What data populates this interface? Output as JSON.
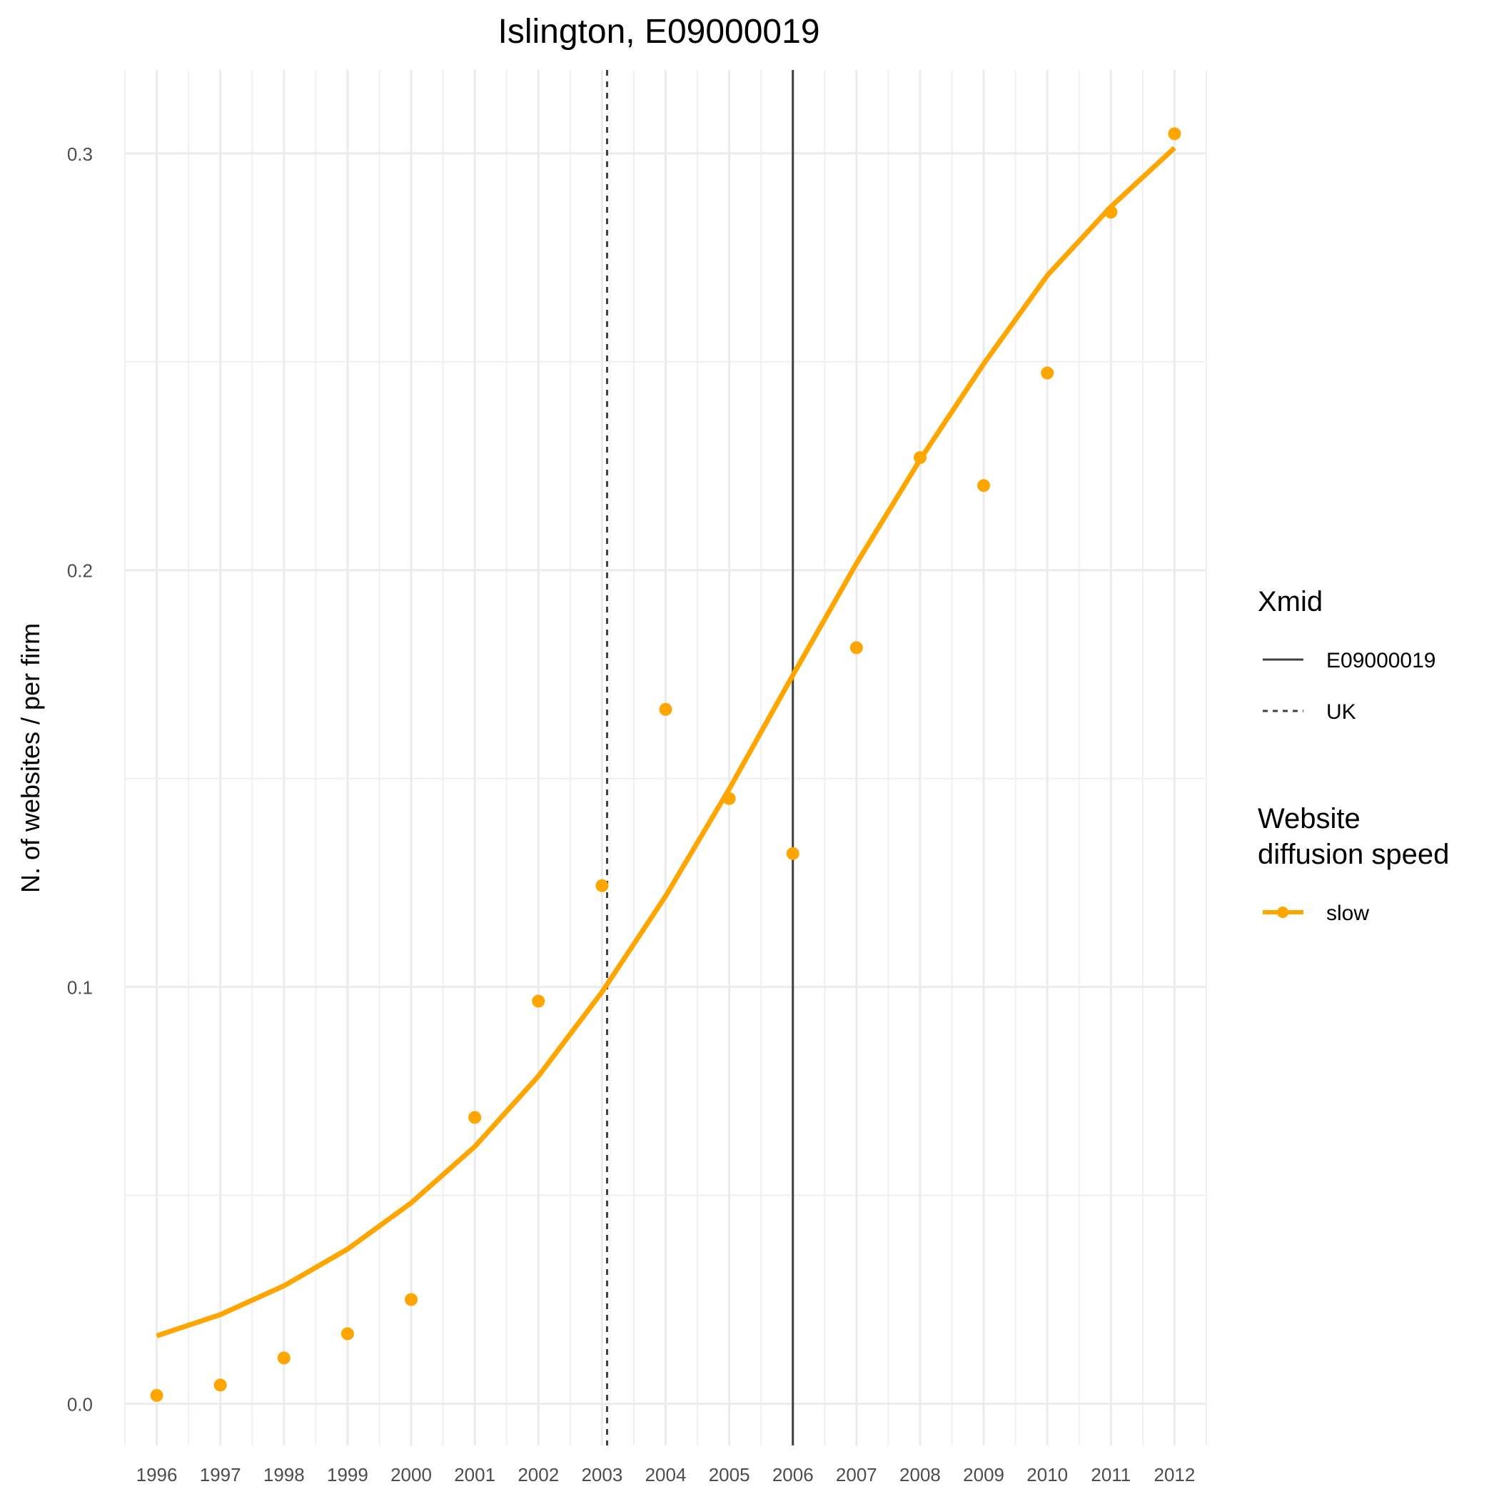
{
  "chart_data": {
    "type": "line",
    "title": "Islington, E09000019",
    "xlabel": "",
    "ylabel": "N. of websites / per firm",
    "x": [
      1996,
      1997,
      1998,
      1999,
      2000,
      2001,
      2002,
      2003,
      2004,
      2005,
      2006,
      2007,
      2008,
      2009,
      2010,
      2011,
      2012
    ],
    "xlim": [
      1995.5,
      2012.5
    ],
    "ylim": [
      -0.01,
      0.32
    ],
    "y_ticks": [
      0.0,
      0.1,
      0.2,
      0.3
    ],
    "y_tick_labels": [
      "0.0",
      "0.1",
      "0.2",
      "0.3"
    ],
    "grid": true,
    "series": [
      {
        "name": "slow",
        "kind": "points",
        "color": "#FFA500",
        "values": [
          0.002,
          0.0045,
          0.011,
          0.0168,
          0.025,
          0.0687,
          0.0966,
          0.1243,
          0.1666,
          0.1452,
          0.132,
          0.1814,
          0.227,
          0.2203,
          0.2473,
          0.2859,
          0.3047
        ]
      },
      {
        "name": "slow",
        "kind": "fit",
        "color": "#FFA500",
        "values": [
          0.0163,
          0.0214,
          0.0283,
          0.0371,
          0.0482,
          0.0617,
          0.0786,
          0.0988,
          0.1218,
          0.1475,
          0.1748,
          0.2016,
          0.2265,
          0.2495,
          0.2707,
          0.2872,
          0.3013
        ]
      }
    ],
    "vlines": [
      {
        "name": "E09000019",
        "x": 2006.0,
        "linetype": "solid",
        "color": "#404040"
      },
      {
        "name": "UK",
        "x": 2003.08,
        "linetype": "dashed",
        "color": "#404040"
      }
    ],
    "legend": {
      "placement": "right",
      "groups": [
        {
          "title": "Xmid",
          "entries": [
            {
              "label": "E09000019",
              "linetype": "solid"
            },
            {
              "label": "UK",
              "linetype": "dashed"
            }
          ]
        },
        {
          "title_lines": [
            "Website",
            "diffusion speed"
          ],
          "entries": [
            {
              "label": "slow",
              "color": "#FFA500"
            }
          ]
        }
      ]
    }
  }
}
